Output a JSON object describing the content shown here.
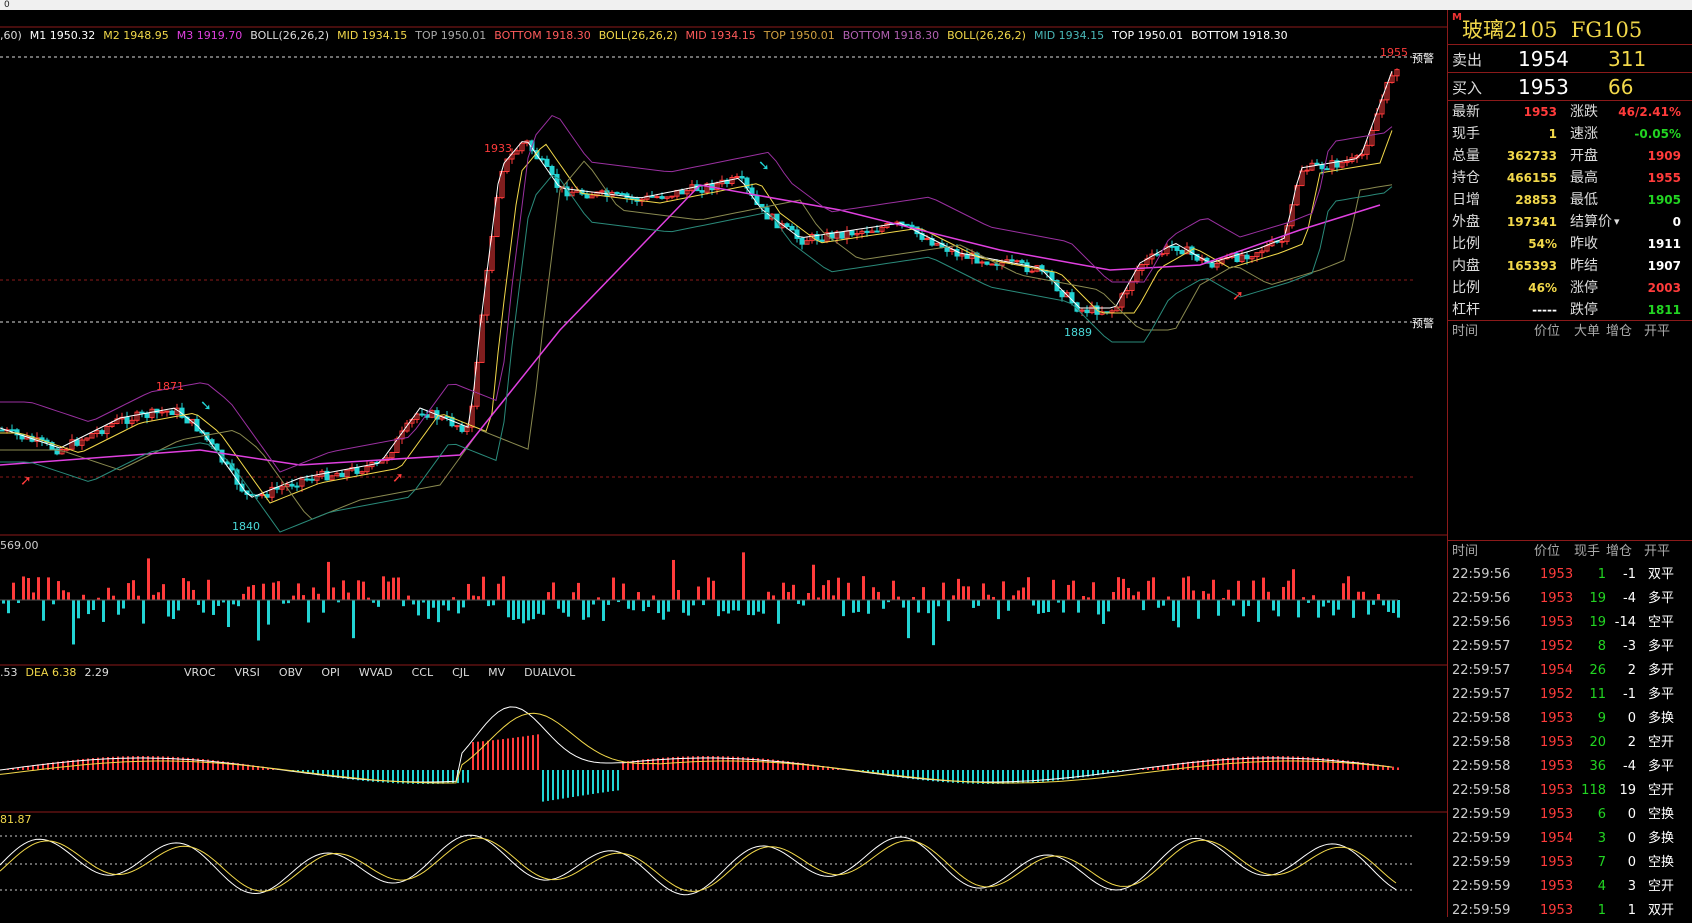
{
  "title_bar_mark": "0",
  "main_legend": [
    {
      "text": ",60)",
      "color": "#dddddd"
    },
    {
      "text": "M1 1950.32",
      "color": "#ffffff"
    },
    {
      "text": "M2 1948.95",
      "color": "#f2d84a"
    },
    {
      "text": "M3 1919.70",
      "color": "#e040e0"
    },
    {
      "text": "BOLL(26,26,2)",
      "color": "#dddddd"
    },
    {
      "text": "MID 1934.15",
      "color": "#f2d84a"
    },
    {
      "text": "TOP 1950.01",
      "color": "#aaaaaa"
    },
    {
      "text": "BOTTOM 1918.30",
      "color": "#ff5b5b"
    },
    {
      "text": "BOLL(26,26,2)",
      "color": "#f2d84a"
    },
    {
      "text": "MID 1934.15",
      "color": "#ff5b5b"
    },
    {
      "text": "TOP 1950.01",
      "color": "#d0a040"
    },
    {
      "text": "BOTTOM 1918.30",
      "color": "#b060b0"
    },
    {
      "text": "BOLL(26,26,2)",
      "color": "#f2d84a"
    },
    {
      "text": "MID 1934.15",
      "color": "#4ab8b8"
    },
    {
      "text": "TOP 1950.01",
      "color": "#ffffff"
    },
    {
      "text": "BOTTOM 1918.30",
      "color": "#ffffff"
    }
  ],
  "price_labels": {
    "high": "1955",
    "peak1": "1933",
    "mid_peak": "1871",
    "low1": "1840",
    "low2": "1889",
    "alert_top": "预警",
    "alert_bottom": "预警"
  },
  "volume_legend": "569.00",
  "macd_legend": [
    {
      "text": ".53",
      "color": "#dddddd"
    },
    {
      "text": "DEA 6.38",
      "color": "#f2d84a"
    },
    {
      "text": "2.29",
      "color": "#dddddd"
    }
  ],
  "indicator_tabs": [
    "VROC",
    "VRSI",
    "OBV",
    "OPI",
    "WVAD",
    "CCL",
    "CJL",
    "MV",
    "DUALVOL"
  ],
  "osc_legend": "81.87",
  "quote": {
    "name": "玻璃2105",
    "code": "FG105",
    "marker": "M",
    "ask_label": "卖出",
    "ask_price": "1954",
    "ask_vol": "311",
    "bid_label": "买入",
    "bid_price": "1953",
    "bid_vol": "66",
    "rows": [
      {
        "k1": "最新",
        "v1": "1953",
        "c1": "up",
        "k2": "涨跌",
        "v2": "46/2.41%",
        "c2": "up"
      },
      {
        "k1": "现手",
        "v1": "1",
        "c1": "ye",
        "k2": "速涨",
        "v2": "-0.05%",
        "c2": "dn"
      },
      {
        "k1": "总量",
        "v1": "362733",
        "c1": "ye",
        "k2": "开盘",
        "v2": "1909",
        "c2": "up"
      },
      {
        "k1": "持仓",
        "v1": "466155",
        "c1": "ye",
        "k2": "最高",
        "v2": "1955",
        "c2": "up"
      },
      {
        "k1": "日增",
        "v1": "28853",
        "c1": "ye",
        "k2": "最低",
        "v2": "1905",
        "c2": "dn"
      },
      {
        "k1": "外盘",
        "v1": "197341",
        "c1": "ye",
        "k2": "结算价",
        "v2": "0",
        "c2": "wh"
      },
      {
        "k1": "比例",
        "v1": "54%",
        "c1": "ye",
        "k2": "昨收",
        "v2": "1911",
        "c2": "wh"
      },
      {
        "k1": "内盘",
        "v1": "165393",
        "c1": "ye",
        "k2": "昨结",
        "v2": "1907",
        "c2": "wh"
      },
      {
        "k1": "比例",
        "v1": "46%",
        "c1": "ye",
        "k2": "涨停",
        "v2": "2003",
        "c2": "up"
      },
      {
        "k1": "杠杆",
        "v1": "-----",
        "c1": "wh",
        "k2": "跌停",
        "v2": "1811",
        "c2": "dn"
      }
    ],
    "settle_arrow": "▾"
  },
  "big_order_header": {
    "time": "时间",
    "price": "价位",
    "big": "大单",
    "oi": "增仓",
    "type": "开平"
  },
  "tick_header": {
    "time": "时间",
    "price": "价位",
    "vol": "现手",
    "oi": "增仓",
    "type": "开平"
  },
  "ticks": [
    {
      "time": "22:59:56",
      "price": "1953",
      "vol": "1",
      "oi": "-1",
      "type": "双平",
      "tc": "wh"
    },
    {
      "time": "22:59:56",
      "price": "1953",
      "vol": "19",
      "oi": "-4",
      "type": "多平",
      "tc": "wh"
    },
    {
      "time": "22:59:56",
      "price": "1953",
      "vol": "19",
      "oi": "-14",
      "type": "空平",
      "tc": "wh"
    },
    {
      "time": "22:59:57",
      "price": "1952",
      "vol": "8",
      "oi": "-3",
      "type": "多平",
      "tc": "wh"
    },
    {
      "time": "22:59:57",
      "price": "1954",
      "vol": "26",
      "oi": "2",
      "type": "多开",
      "tc": "wh"
    },
    {
      "time": "22:59:57",
      "price": "1952",
      "vol": "11",
      "oi": "-1",
      "type": "多平",
      "tc": "wh"
    },
    {
      "time": "22:59:58",
      "price": "1953",
      "vol": "9",
      "oi": "0",
      "type": "多换",
      "tc": "wh"
    },
    {
      "time": "22:59:58",
      "price": "1953",
      "vol": "20",
      "oi": "2",
      "type": "空开",
      "tc": "wh"
    },
    {
      "time": "22:59:58",
      "price": "1953",
      "vol": "36",
      "oi": "-4",
      "type": "多平",
      "tc": "wh"
    },
    {
      "time": "22:59:58",
      "price": "1953",
      "vol": "118",
      "oi": "19",
      "type": "空开",
      "tc": "wh"
    },
    {
      "time": "22:59:59",
      "price": "1953",
      "vol": "6",
      "oi": "0",
      "type": "空换",
      "tc": "wh"
    },
    {
      "time": "22:59:59",
      "price": "1954",
      "vol": "3",
      "oi": "0",
      "type": "多换",
      "tc": "wh"
    },
    {
      "time": "22:59:59",
      "price": "1953",
      "vol": "7",
      "oi": "0",
      "type": "空换",
      "tc": "wh"
    },
    {
      "time": "22:59:59",
      "price": "1953",
      "vol": "4",
      "oi": "3",
      "type": "空开",
      "tc": "wh"
    },
    {
      "time": "22:59:59",
      "price": "1953",
      "vol": "1",
      "oi": "1",
      "type": "双开",
      "tc": "wh"
    }
  ],
  "colors": {
    "up": "#ff3b3b",
    "down": "#22d4d4",
    "ma1": "#ffffff",
    "ma2": "#f2d84a",
    "ma3": "#e040e0",
    "grid": "#8b1a1a"
  }
}
